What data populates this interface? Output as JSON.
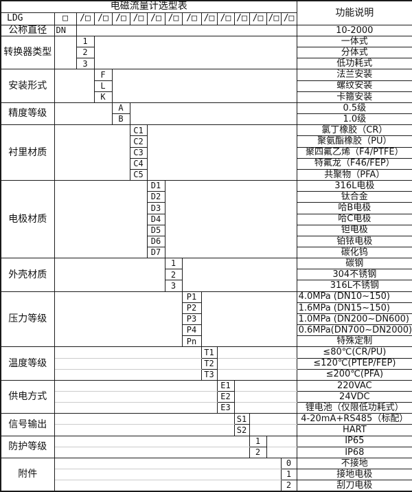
{
  "header": {
    "title": "电磁流量计选型表",
    "function_col": "功能说明"
  },
  "model_row": {
    "prefix": "LDG",
    "first_box": "□",
    "slot": "/□",
    "slot_count": 13
  },
  "sections": [
    {
      "label": "公称直径",
      "col": 0,
      "ruled": false,
      "code_left": true,
      "rows": [
        {
          "code": "DN",
          "desc": "10-2000"
        }
      ]
    },
    {
      "label": "转换器类型",
      "col": 1,
      "ruled": false,
      "rows": [
        {
          "code": "1",
          "desc": "一体式"
        },
        {
          "code": "2",
          "desc": "分体式"
        },
        {
          "code": "3",
          "desc": "低功耗式"
        }
      ]
    },
    {
      "label": "安装形式",
      "col": 2,
      "ruled": false,
      "rows": [
        {
          "code": "F",
          "desc": "法兰安装"
        },
        {
          "code": "L",
          "desc": "螺纹安装"
        },
        {
          "code": "K",
          "desc": "卡箍安装"
        }
      ]
    },
    {
      "label": "精度等级",
      "col": 3,
      "ruled": false,
      "rows": [
        {
          "code": "A",
          "desc": "0.5级"
        },
        {
          "code": "B",
          "desc": "1.0级"
        }
      ]
    },
    {
      "label": "衬里材质",
      "col": 4,
      "ruled": false,
      "rows": [
        {
          "code": "C1",
          "desc": "氯丁橡胶（CR）"
        },
        {
          "code": "C2",
          "desc": "聚氨酯橡胶（PU）"
        },
        {
          "code": "C3",
          "desc": "聚四氟乙烯（F4/PTFE）"
        },
        {
          "code": "C4",
          "desc": "特氟龙（F46/FEP）"
        },
        {
          "code": "C5",
          "desc": "共聚物（PFA）"
        }
      ]
    },
    {
      "label": "电极材质",
      "col": 5,
      "ruled": false,
      "rows": [
        {
          "code": "D1",
          "desc": "316L电极"
        },
        {
          "code": "D2",
          "desc": "钛合金"
        },
        {
          "code": "D3",
          "desc": "哈B电极"
        },
        {
          "code": "D4",
          "desc": "哈C电极"
        },
        {
          "code": "D5",
          "desc": "钽电极"
        },
        {
          "code": "D6",
          "desc": "铂铱电极"
        },
        {
          "code": "D7",
          "desc": "碳化钨"
        }
      ]
    },
    {
      "label": "外壳材质",
      "col": 6,
      "ruled": false,
      "rows": [
        {
          "code": "1",
          "desc": "碳钢"
        },
        {
          "code": "2",
          "desc": "304不锈钢"
        },
        {
          "code": "3",
          "desc": "316L不锈钢"
        }
      ]
    },
    {
      "label": "压力等级",
      "col": 7,
      "ruled": false,
      "rows": [
        {
          "code": "P1",
          "desc": "4.0MPa (DN10~150)",
          "align": "left"
        },
        {
          "code": "P2",
          "desc": "1.6MPa (DN15~150)",
          "align": "left"
        },
        {
          "code": "P3",
          "desc": "1.0MPa (DN200~DN600)",
          "align": "left"
        },
        {
          "code": "P4",
          "desc": "0.6MPa(DN700~DN2000)",
          "align": "left"
        },
        {
          "code": "Pn",
          "desc": "特殊定制"
        }
      ]
    },
    {
      "label": "温度等级",
      "col": 8,
      "ruled": true,
      "rows": [
        {
          "code": "T1",
          "desc": "≤80℃(CR/PU)"
        },
        {
          "code": "T2",
          "desc": "≤120℃(PTEP/FEP)"
        },
        {
          "code": "T3",
          "desc": "≤200℃(PFA)"
        }
      ]
    },
    {
      "label": "供电方式",
      "col": 9,
      "ruled": true,
      "rows": [
        {
          "code": "E1",
          "desc": "220VAC"
        },
        {
          "code": "E2",
          "desc": "24VDC"
        },
        {
          "code": "E3",
          "desc": "锂电池（仅限低功耗式）"
        }
      ]
    },
    {
      "label": "信号输出",
      "col": 10,
      "ruled": true,
      "rows": [
        {
          "code": "S1",
          "desc": "4-20mA+RS485（标配）"
        },
        {
          "code": "S2",
          "desc": "HART"
        }
      ]
    },
    {
      "label": "防护等级",
      "col": 11,
      "ruled": true,
      "rows": [
        {
          "code": "1",
          "desc": "IP65"
        },
        {
          "code": "2",
          "desc": "IP68"
        }
      ]
    },
    {
      "label": "附件",
      "col": 13,
      "ruled": true,
      "rows": [
        {
          "code": "0",
          "desc": "不接地"
        },
        {
          "code": "1",
          "desc": "接地电极"
        },
        {
          "code": "2",
          "desc": "刮刀电极"
        }
      ]
    }
  ]
}
